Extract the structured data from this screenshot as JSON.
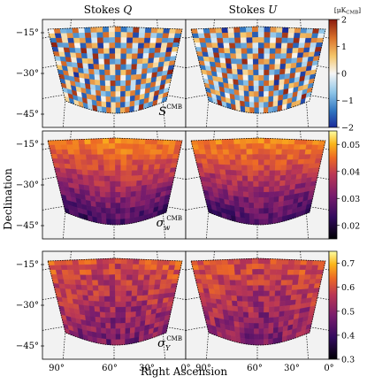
{
  "figure": {
    "x_axis_label": "Right Ascension",
    "y_axis_label": "Declination",
    "column_titles": [
      {
        "prefix": "Stokes ",
        "symbol": "Q"
      },
      {
        "prefix": "Stokes ",
        "symbol": "U"
      }
    ],
    "unit_label": "[μK",
    "unit_sub": "CMB",
    "unit_close": "]"
  },
  "chart_data": [
    {
      "type": "heatmap",
      "title": "",
      "panel_symbol": "S",
      "panel_superscript": "CMB",
      "panel_subscript": "",
      "columns": [
        "Stokes Q",
        "Stokes U"
      ],
      "colormap": "RdYlBu_r",
      "colorbar": {
        "min": -2,
        "max": 2,
        "ticks": [
          -2,
          -1,
          0,
          1,
          2
        ]
      },
      "dec_ticks": [
        "−15°",
        "−30°",
        "−45°"
      ],
      "ra_ticks": []
    },
    {
      "type": "heatmap",
      "title": "",
      "panel_symbol": "σ",
      "panel_superscript": "CMB",
      "panel_subscript": "w",
      "columns": [
        "Stokes Q",
        "Stokes U"
      ],
      "colormap": "inferno",
      "colorbar": {
        "min": 0.015,
        "max": 0.055,
        "ticks": [
          0.02,
          0.03,
          0.04,
          0.05
        ]
      },
      "dec_ticks": [
        "−15°",
        "−30°",
        "−45°"
      ],
      "ra_ticks": []
    },
    {
      "type": "heatmap",
      "title": "",
      "panel_symbol": "σ",
      "panel_superscript": "CMB",
      "panel_subscript": "Y",
      "columns": [
        "Stokes Q",
        "Stokes U"
      ],
      "colormap": "inferno",
      "colorbar": {
        "min": 0.3,
        "max": 0.75,
        "ticks": [
          0.3,
          0.4,
          0.5,
          0.6,
          0.7
        ]
      },
      "dec_ticks": [
        "−15°",
        "−30°",
        "−45°"
      ],
      "ra_ticks": [
        "90°",
        "60°",
        "30°",
        "0°"
      ]
    }
  ]
}
